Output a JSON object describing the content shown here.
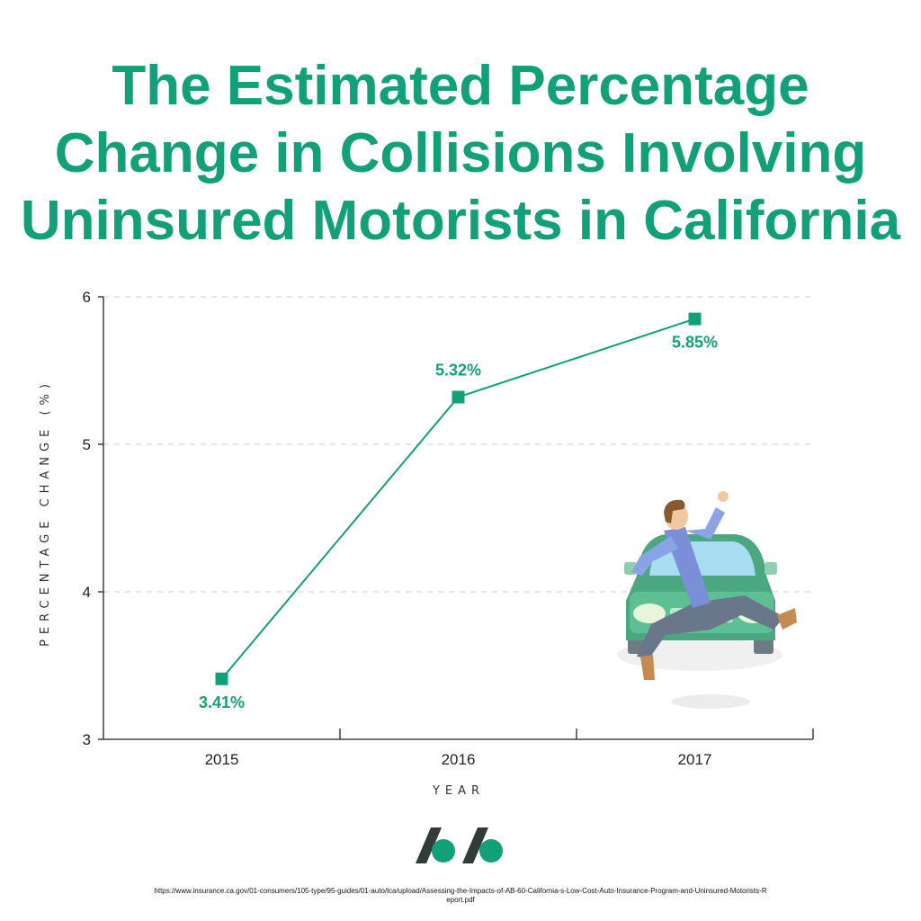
{
  "title_lines": [
    "The Estimated Percentage",
    "Change in Collisions Involving",
    "Uninsured Motorists in California"
  ],
  "colors": {
    "accent": "#12a078",
    "axis": "#222222",
    "grid": "#cccccc"
  },
  "chart_data": {
    "type": "line",
    "title": "The Estimated Percentage Change in Collisions Involving Uninsured Motorists in California",
    "xlabel": "YEAR",
    "ylabel": "PERCENTAGE CHANGE (%)",
    "categories": [
      "2015",
      "2016",
      "2017"
    ],
    "series": [
      {
        "values": [
          3.41,
          5.32,
          5.85
        ],
        "labels": [
          "3.41%",
          "5.32%",
          "5.85%"
        ]
      }
    ],
    "ylim": [
      3,
      6
    ],
    "yticks": [
      "3",
      "4",
      "5",
      "6"
    ],
    "grid": "horizontal dashed",
    "marker": "square"
  },
  "illustration": "person-hit-by-car",
  "logo_icon": "slash-dot-logo",
  "source_url": "https://www.insurance.ca.gov/01-consumers/105-type/95-guides/01-auto/lca/upload/Assessing-the-Impacts-of-AB-60-California-s-Low-Cost-Auto-Insurance-Program-and-Uninsured-Motorists-Report.pdf"
}
